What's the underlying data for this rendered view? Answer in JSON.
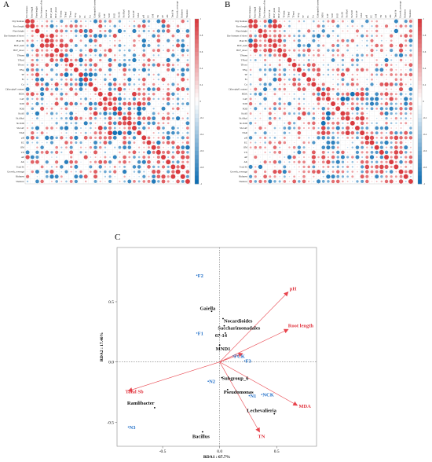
{
  "panels": {
    "a": "A",
    "b": "B",
    "c": "C"
  },
  "heatmap_rows": [
    "Dry biomass",
    "Root length",
    "Plant height",
    "Dry biomass of shoot",
    "Plant Sb",
    "BCF_stem",
    "BCF_shoot",
    "TFstem",
    "TFleaf",
    "TFroot",
    "TFsp",
    "TF",
    "Fe",
    "Cu",
    "Chlorophyll content",
    "MDA",
    "CAT",
    "SOD",
    "POD",
    "Sb.All",
    "Sb.Alkyl",
    "Sb.SOD",
    "Sb.CAT",
    "NAR",
    "pH",
    "EC",
    "OM",
    "TN",
    "AP",
    "AK",
    "Total Sb",
    "Growth_coverage",
    "Richness",
    "Shannon"
  ],
  "scale_ticks": [
    "1",
    "0.8",
    "0.6",
    "0.4",
    "0.2",
    "0",
    "-0.2",
    "-0.4",
    "-0.6",
    "-0.8",
    "-1"
  ],
  "chart_data": [
    {
      "type": "heatmap",
      "panel": "A",
      "value_range": [
        -1,
        1
      ],
      "note_rows_cols": "heatmap_rows"
    },
    {
      "type": "heatmap",
      "panel": "B",
      "value_range": [
        -1,
        1
      ],
      "note_rows_cols": "heatmap_rows"
    },
    {
      "type": "scatter",
      "panel": "C",
      "xlabel": "RDA1 : 67.7%",
      "ylabel": "RDA2 : 17.46%",
      "xlim": [
        -0.9,
        0.85
      ],
      "ylim": [
        -0.7,
        0.95
      ],
      "xticks": [
        -0.5,
        0.0,
        0.5
      ],
      "yticks": [
        -0.5,
        0.0,
        0.5
      ],
      "vectors": [
        {
          "label": "pH",
          "x": 0.6,
          "y": 0.58
        },
        {
          "label": "Root length",
          "x": 0.6,
          "y": 0.27
        },
        {
          "label": "FCK",
          "x": 0.2,
          "y": 0.07
        },
        {
          "label": "MDA",
          "x": 0.68,
          "y": -0.36
        },
        {
          "label": "TN",
          "x": 0.35,
          "y": -0.58
        },
        {
          "label": "Tatal Sb",
          "x": -0.8,
          "y": -0.24
        }
      ],
      "genera": [
        {
          "label": "Gaiella",
          "x": -0.07,
          "y": 0.42
        },
        {
          "label": "Nocardioides",
          "x": 0.03,
          "y": 0.36
        },
        {
          "label": "Saccharimonadales",
          "x": 0.04,
          "y": 0.3
        },
        {
          "label": "67-14",
          "x": 0.05,
          "y": 0.24
        },
        {
          "label": "MND1",
          "x": 0.0,
          "y": 0.14
        },
        {
          "label": "Subgroup_6",
          "x": 0.02,
          "y": -0.13
        },
        {
          "label": "Pseudomonas",
          "x": 0.07,
          "y": -0.23
        },
        {
          "label": "Lechevalieria",
          "x": 0.48,
          "y": -0.43
        },
        {
          "label": "Ramlibacter",
          "x": -0.57,
          "y": -0.38
        },
        {
          "label": "Bacillus",
          "x": -0.15,
          "y": -0.58
        }
      ],
      "samples": [
        {
          "label": "F2",
          "x": -0.2,
          "y": 0.72
        },
        {
          "label": "F1",
          "x": -0.2,
          "y": 0.24
        },
        {
          "label": "FCK",
          "x": 0.12,
          "y": 0.05
        },
        {
          "label": "F3",
          "x": 0.22,
          "y": 0.01
        },
        {
          "label": "N2",
          "x": -0.1,
          "y": -0.16
        },
        {
          "label": "N1",
          "x": 0.26,
          "y": -0.28
        },
        {
          "label": "NCK",
          "x": 0.37,
          "y": -0.27
        },
        {
          "label": "N3",
          "x": -0.8,
          "y": -0.54
        }
      ]
    }
  ],
  "colors": {
    "positive": "#d93a3f",
    "negative": "#0f6fb4",
    "vector": "#e8454e",
    "sample": "#1f6ec8"
  }
}
